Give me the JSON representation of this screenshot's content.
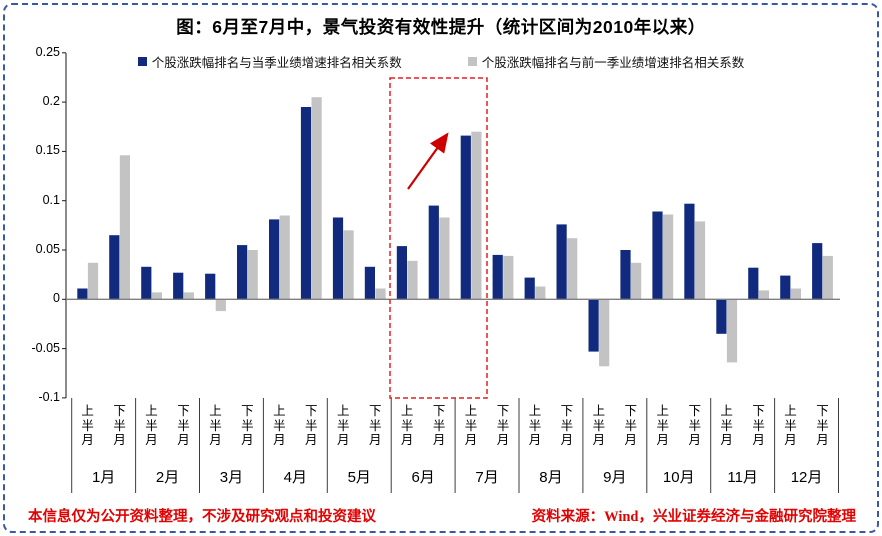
{
  "figure": {
    "title": "图：6月至7月中，景气投资有效性提升（统计区间为2010年以来）",
    "border_color": "#3a57a8",
    "footer": {
      "disclaimer": "本信息仅为公开资料整理，不涉及研究观点和投资建议",
      "source": "资料来源：Wind，兴业证券经济与金融研究院整理",
      "text_color": "#e30000"
    }
  },
  "chart_data": {
    "type": "bar",
    "title": "图：6月至7月中，景气投资有效性提升（统计区间为2010年以来）",
    "months": [
      "1月",
      "2月",
      "3月",
      "4月",
      "5月",
      "6月",
      "7月",
      "8月",
      "9月",
      "10月",
      "11月",
      "12月"
    ],
    "half_month_labels": [
      "上半月",
      "下半月"
    ],
    "categories": [
      "1月上半月",
      "1月下半月",
      "2月上半月",
      "2月下半月",
      "3月上半月",
      "3月下半月",
      "4月上半月",
      "4月下半月",
      "5月上半月",
      "5月下半月",
      "6月上半月",
      "6月下半月",
      "7月上半月",
      "7月下半月",
      "8月上半月",
      "8月下半月",
      "9月上半月",
      "9月下半月",
      "10月上半月",
      "10月下半月",
      "11月上半月",
      "11月下半月",
      "12月上半月",
      "12月下半月"
    ],
    "series": [
      {
        "name": "个股涨跌幅排名与当季业绩增速排名相关系数",
        "color": "#112a7e",
        "values": [
          0.011,
          0.065,
          0.033,
          0.027,
          0.026,
          0.055,
          0.081,
          0.195,
          0.083,
          0.033,
          0.054,
          0.095,
          0.166,
          0.045,
          0.022,
          0.076,
          -0.053,
          0.05,
          0.089,
          0.097,
          -0.035,
          0.032,
          0.024,
          0.057
        ]
      },
      {
        "name": "个股涨跌幅排名与前一季业绩增速排名相关系数",
        "color": "#c3c3c3",
        "values": [
          0.037,
          0.146,
          0.007,
          0.007,
          -0.012,
          0.05,
          0.085,
          0.205,
          0.07,
          0.011,
          0.039,
          0.083,
          0.17,
          0.044,
          0.013,
          0.062,
          -0.068,
          0.037,
          0.086,
          0.079,
          -0.064,
          0.009,
          0.011,
          0.044
        ]
      }
    ],
    "y_ticks": [
      0.25,
      0.2,
      0.15,
      0.1,
      0.05,
      0,
      -0.05,
      -0.1
    ],
    "y_tick_labels": [
      "0.25",
      "0.2",
      "0.15",
      "0.1",
      "0.05",
      "0",
      "-0.05",
      "-0.1"
    ],
    "ylim": [
      -0.1,
      0.25
    ],
    "grid": false,
    "legend_position": "top",
    "axis_color": "#1a1a1a",
    "zero_line_color": "#7f7f7f",
    "annotations": {
      "highlight_box": {
        "over_categories": "6月上半月—7月上半月",
        "color": "#e02020",
        "style": "dashed"
      },
      "arrow": {
        "direction": "up-right",
        "color": "#cc0000"
      }
    }
  }
}
